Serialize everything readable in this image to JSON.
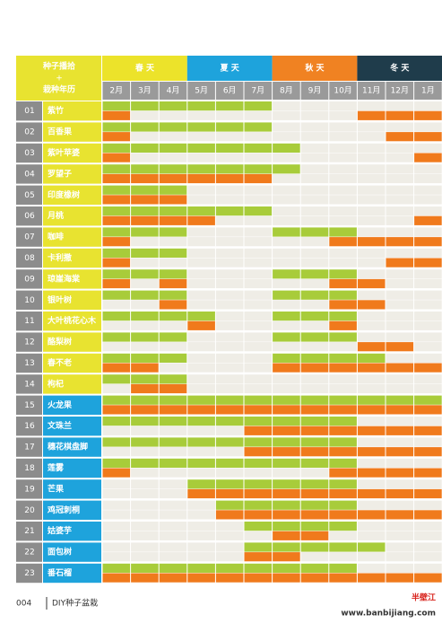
{
  "header": {
    "title": "种子播拾",
    "plus": "+",
    "subtitle": "栽种年历"
  },
  "seasons": [
    {
      "name": "春 天",
      "color": "#ece32a"
    },
    {
      "name": "夏 天",
      "color": "#1ea3dc"
    },
    {
      "name": "秋 天",
      "color": "#f08222"
    },
    {
      "name": "冬 天",
      "color": "#1f3c4b"
    }
  ],
  "months": [
    "2月",
    "3月",
    "4月",
    "5月",
    "6月",
    "7月",
    "8月",
    "9月",
    "10月",
    "11月",
    "12月",
    "1月"
  ],
  "colors": {
    "sow": "#a8cc3a",
    "plant": "#f07a1c",
    "empty": "#efede6",
    "name_spring": "#e8e330",
    "name_summer": "#1ea3dc",
    "number": "#8c8c8c",
    "month": "#9a9a9a"
  },
  "plants": [
    {
      "no": "01",
      "name": "紫竹",
      "sow": [
        1,
        1,
        1,
        1,
        1,
        1,
        0,
        0,
        0,
        0,
        0,
        0
      ],
      "plant": [
        1,
        0,
        0,
        0,
        0,
        0,
        0,
        0,
        0,
        1,
        1,
        1
      ]
    },
    {
      "no": "02",
      "name": "百香果",
      "sow": [
        1,
        1,
        1,
        1,
        1,
        1,
        0,
        0,
        0,
        0,
        0,
        0
      ],
      "plant": [
        1,
        0,
        0,
        0,
        0,
        0,
        0,
        0,
        0,
        0,
        1,
        1
      ]
    },
    {
      "no": "03",
      "name": "紫叶苹婆",
      "sow": [
        1,
        1,
        1,
        1,
        1,
        1,
        1,
        0,
        0,
        0,
        0,
        0
      ],
      "plant": [
        1,
        0,
        0,
        0,
        0,
        0,
        0,
        0,
        0,
        0,
        0,
        1
      ]
    },
    {
      "no": "04",
      "name": "罗望子",
      "sow": [
        1,
        1,
        1,
        1,
        1,
        1,
        1,
        0,
        0,
        0,
        0,
        0
      ],
      "plant": [
        1,
        1,
        1,
        1,
        1,
        1,
        0,
        0,
        0,
        0,
        0,
        0
      ]
    },
    {
      "no": "05",
      "name": "印度橡树",
      "sow": [
        1,
        1,
        1,
        0,
        0,
        0,
        0,
        0,
        0,
        0,
        0,
        0
      ],
      "plant": [
        1,
        1,
        1,
        0,
        0,
        0,
        0,
        0,
        0,
        0,
        0,
        0
      ]
    },
    {
      "no": "06",
      "name": "月桃",
      "sow": [
        1,
        1,
        1,
        1,
        1,
        1,
        0,
        0,
        0,
        0,
        0,
        0
      ],
      "plant": [
        1,
        1,
        1,
        1,
        0,
        0,
        0,
        0,
        0,
        0,
        0,
        1
      ]
    },
    {
      "no": "07",
      "name": "咖啡",
      "sow": [
        1,
        1,
        1,
        0,
        0,
        0,
        1,
        1,
        1,
        0,
        0,
        0
      ],
      "plant": [
        1,
        0,
        0,
        0,
        0,
        0,
        0,
        0,
        1,
        1,
        1,
        1
      ]
    },
    {
      "no": "08",
      "name": "卡利撒",
      "sow": [
        1,
        1,
        1,
        0,
        0,
        0,
        0,
        0,
        0,
        0,
        0,
        0
      ],
      "plant": [
        1,
        0,
        0,
        0,
        0,
        0,
        0,
        0,
        0,
        0,
        1,
        1
      ]
    },
    {
      "no": "09",
      "name": "琼崖海棠",
      "sow": [
        1,
        1,
        1,
        0,
        0,
        0,
        1,
        1,
        1,
        0,
        0,
        0
      ],
      "plant": [
        1,
        0,
        1,
        0,
        0,
        0,
        0,
        0,
        1,
        1,
        0,
        0
      ]
    },
    {
      "no": "10",
      "name": "银叶树",
      "sow": [
        1,
        1,
        1,
        0,
        0,
        0,
        1,
        1,
        1,
        0,
        0,
        0
      ],
      "plant": [
        0,
        0,
        1,
        0,
        0,
        0,
        0,
        0,
        1,
        1,
        0,
        0
      ]
    },
    {
      "no": "11",
      "name": "大叶桃花心木",
      "sow": [
        1,
        1,
        1,
        1,
        0,
        0,
        1,
        1,
        1,
        0,
        0,
        0
      ],
      "plant": [
        0,
        0,
        0,
        1,
        0,
        0,
        0,
        0,
        1,
        0,
        0,
        0
      ]
    },
    {
      "no": "12",
      "name": "酪梨树",
      "sow": [
        1,
        1,
        1,
        0,
        0,
        0,
        1,
        1,
        1,
        0,
        0,
        0
      ],
      "plant": [
        0,
        0,
        0,
        0,
        0,
        0,
        0,
        0,
        0,
        1,
        1,
        0
      ]
    },
    {
      "no": "13",
      "name": "春不老",
      "sow": [
        1,
        1,
        1,
        0,
        0,
        0,
        1,
        1,
        1,
        1,
        0,
        0
      ],
      "plant": [
        1,
        1,
        0,
        0,
        0,
        0,
        1,
        1,
        1,
        1,
        1,
        1
      ]
    },
    {
      "no": "14",
      "name": "枸杞",
      "sow": [
        1,
        1,
        1,
        0,
        0,
        0,
        0,
        0,
        0,
        0,
        0,
        0
      ],
      "plant": [
        0,
        1,
        1,
        0,
        0,
        0,
        0,
        0,
        0,
        0,
        0,
        0
      ]
    },
    {
      "no": "15",
      "name": "火龙果",
      "sow": [
        1,
        1,
        1,
        1,
        1,
        1,
        1,
        1,
        1,
        1,
        1,
        1
      ],
      "plant": [
        1,
        1,
        1,
        1,
        1,
        1,
        1,
        1,
        1,
        1,
        1,
        1
      ]
    },
    {
      "no": "16",
      "name": "文珠兰",
      "sow": [
        1,
        1,
        1,
        1,
        1,
        1,
        1,
        1,
        1,
        0,
        0,
        0
      ],
      "plant": [
        0,
        0,
        0,
        0,
        0,
        1,
        1,
        1,
        1,
        1,
        1,
        1
      ]
    },
    {
      "no": "17",
      "name": "穗花棋盘脚",
      "sow": [
        1,
        1,
        1,
        1,
        1,
        1,
        1,
        1,
        1,
        0,
        0,
        0
      ],
      "plant": [
        0,
        0,
        0,
        0,
        0,
        1,
        1,
        1,
        1,
        1,
        1,
        1
      ]
    },
    {
      "no": "18",
      "name": "莲雾",
      "sow": [
        1,
        1,
        1,
        1,
        1,
        1,
        1,
        1,
        1,
        0,
        0,
        0
      ],
      "plant": [
        1,
        0,
        0,
        0,
        0,
        0,
        0,
        0,
        1,
        1,
        1,
        1
      ]
    },
    {
      "no": "19",
      "name": "芒果",
      "sow": [
        0,
        0,
        0,
        1,
        1,
        1,
        1,
        1,
        1,
        0,
        0,
        0
      ],
      "plant": [
        0,
        0,
        0,
        1,
        1,
        1,
        1,
        1,
        1,
        1,
        1,
        1
      ]
    },
    {
      "no": "20",
      "name": "鸡冠刺桐",
      "sow": [
        0,
        0,
        0,
        0,
        1,
        1,
        1,
        1,
        1,
        0,
        0,
        0
      ],
      "plant": [
        0,
        0,
        0,
        0,
        1,
        1,
        1,
        1,
        1,
        1,
        1,
        1
      ]
    },
    {
      "no": "21",
      "name": "姑婆芋",
      "sow": [
        0,
        0,
        0,
        0,
        0,
        1,
        1,
        1,
        1,
        0,
        0,
        0
      ],
      "plant": [
        0,
        0,
        0,
        0,
        0,
        0,
        1,
        1,
        0,
        0,
        0,
        0
      ]
    },
    {
      "no": "22",
      "name": "面包树",
      "sow": [
        0,
        0,
        0,
        0,
        0,
        1,
        1,
        1,
        1,
        1,
        0,
        0
      ],
      "plant": [
        0,
        0,
        0,
        0,
        0,
        1,
        1,
        0,
        0,
        0,
        0,
        0
      ]
    },
    {
      "no": "23",
      "name": "番石榴",
      "sow": [
        1,
        1,
        1,
        1,
        1,
        1,
        1,
        1,
        1,
        0,
        0,
        0
      ],
      "plant": [
        1,
        1,
        1,
        1,
        1,
        1,
        1,
        1,
        1,
        1,
        1,
        1
      ]
    }
  ],
  "footer": {
    "page": "004",
    "book": "DIY种子盆栽",
    "logo": "半壁江",
    "url": "www.banbijiang.com"
  }
}
